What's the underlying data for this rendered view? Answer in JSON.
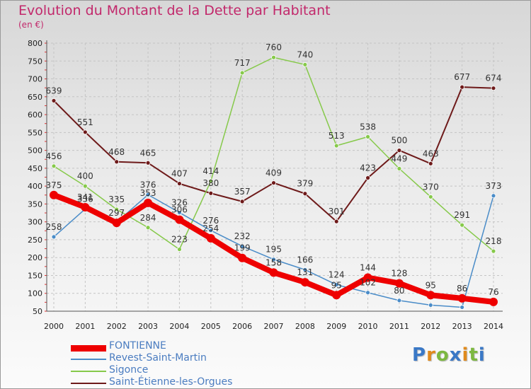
{
  "title": "Evolution du Montant de la Dette par Habitant",
  "subtitle": "(en €)",
  "logo": {
    "letters": [
      {
        "ch": "P",
        "color": "#3a78c6"
      },
      {
        "ch": "r",
        "color": "#e08a1c"
      },
      {
        "ch": "o",
        "color": "#7db840"
      },
      {
        "ch": "x",
        "color": "#3a78c6"
      },
      {
        "ch": "i",
        "color": "#e08a1c"
      },
      {
        "ch": "t",
        "color": "#7db840"
      },
      {
        "ch": "i",
        "color": "#3a78c6"
      }
    ]
  },
  "chart_data": {
    "type": "line",
    "x": [
      2000,
      2001,
      2002,
      2003,
      2004,
      2005,
      2006,
      2007,
      2008,
      2009,
      2010,
      2011,
      2012,
      2013,
      2014
    ],
    "xlabels": [
      "2000",
      "2001",
      "2002",
      "2003",
      "2004",
      "2005",
      "2006",
      "2007",
      "2008",
      "2009",
      "2010",
      "2011",
      "2012",
      "2013",
      "2014"
    ],
    "ylim": [
      50,
      800
    ],
    "yticks": [
      "50",
      "100",
      "150",
      "200",
      "250",
      "300",
      "350",
      "400",
      "450",
      "500",
      "550",
      "600",
      "650",
      "700",
      "750",
      "800"
    ],
    "grid": true,
    "legend": "bottom-left",
    "series": [
      {
        "name": "FONTIENNE",
        "color": "#ee0000",
        "values": [
          375,
          341,
          297,
          353,
          306,
          254,
          199,
          158,
          131,
          95,
          144,
          128,
          95,
          86,
          76
        ],
        "labels": [
          "375",
          "341",
          "297",
          "353",
          "306",
          "254",
          "199",
          "158",
          "131",
          "95",
          "144",
          "128",
          "95",
          "86",
          "76"
        ]
      },
      {
        "name": "Revest-Saint-Martin",
        "color": "#4a8cc8",
        "values": [
          258,
          336,
          299,
          376,
          326,
          276,
          232,
          195,
          166,
          124,
          102,
          80,
          67,
          61,
          373
        ],
        "labels": [
          "258",
          "336",
          "",
          "376",
          "326",
          "276",
          "232",
          "195",
          "166",
          "124",
          "102",
          "80",
          "",
          "",
          "373"
        ]
      },
      {
        "name": "Sigonce",
        "color": "#86c94a",
        "values": [
          456,
          400,
          335,
          284,
          223,
          null,
          null,
          null,
          null,
          null,
          null,
          null,
          null,
          null,
          218
        ],
        "segments": [
          [
            456,
            400,
            335,
            284,
            223,
            null,
            null,
            null,
            null,
            null,
            null,
            null,
            null,
            null,
            null
          ],
          [
            null,
            null,
            null,
            null,
            null,
            414,
            717,
            760,
            740,
            513,
            538,
            449,
            370,
            291,
            218
          ]
        ],
        "values_full": [
          456,
          400,
          335,
          284,
          223,
          414,
          717,
          760,
          740,
          513,
          538,
          449,
          370,
          291,
          218
        ],
        "labels": [
          "456",
          "400",
          "335",
          "284",
          "223",
          "414",
          "717",
          "760",
          "740",
          "513",
          "538",
          "449",
          "370",
          "291",
          "218"
        ]
      },
      {
        "name": "Saint-Étienne-les-Orgues",
        "color": "#6e1a1a",
        "values": [
          639,
          551,
          468,
          465,
          407,
          380,
          357,
          409,
          379,
          301,
          423,
          500,
          463,
          677,
          674
        ],
        "labels": [
          "639",
          "551",
          "468",
          "465",
          "407",
          "380",
          "357",
          "409",
          "379",
          "301",
          "423",
          "500",
          "463",
          "677",
          "674"
        ]
      }
    ]
  }
}
